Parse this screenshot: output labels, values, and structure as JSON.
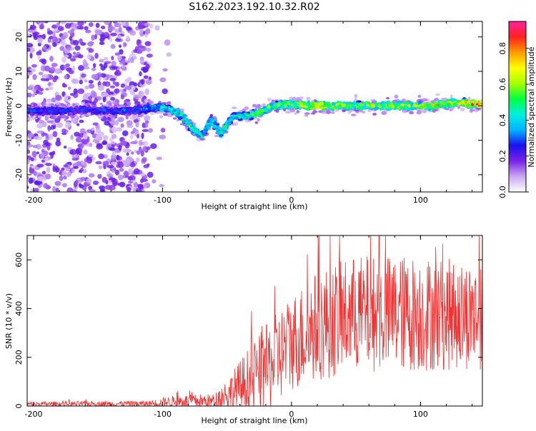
{
  "title": "S162.2023.192.10.32.R02",
  "chart_data": [
    {
      "type": "heatmap",
      "xlabel": "Height of straight line (km)",
      "ylabel": "Frequency (Hz)",
      "xlim": [
        -205,
        148
      ],
      "ylim": [
        -25,
        24.5
      ],
      "xticks": [
        -200,
        -100,
        0,
        100
      ],
      "yticks": [
        -20,
        -10,
        0,
        10,
        20
      ],
      "colorbar": {
        "label": "Normalized spectral amplitude",
        "range": [
          0.0,
          0.95
        ],
        "ticks": [
          "0.0",
          "0.2",
          "0.4",
          "0.6",
          "0.8"
        ],
        "colors": [
          "#ffffff",
          "#c9a8f2",
          "#7a22e8",
          "#1a10f0",
          "#00b4ff",
          "#00f0e0",
          "#00ff40",
          "#a8ff00",
          "#ffff00",
          "#ff9a00",
          "#ff2020",
          "#ff20a0"
        ]
      },
      "ridge": [
        {
          "x": -200,
          "y": -1.5,
          "a": 0.28
        },
        {
          "x": -180,
          "y": -1.5,
          "a": 0.3
        },
        {
          "x": -160,
          "y": -1.2,
          "a": 0.28
        },
        {
          "x": -140,
          "y": -1.5,
          "a": 0.3
        },
        {
          "x": -120,
          "y": -1.2,
          "a": 0.32
        },
        {
          "x": -105,
          "y": -0.5,
          "a": 0.4
        },
        {
          "x": -95,
          "y": -0.8,
          "a": 0.5
        },
        {
          "x": -85,
          "y": -3,
          "a": 0.55
        },
        {
          "x": -78,
          "y": -6,
          "a": 0.55
        },
        {
          "x": -70,
          "y": -9,
          "a": 0.5
        },
        {
          "x": -62,
          "y": -4,
          "a": 0.45
        },
        {
          "x": -55,
          "y": -8,
          "a": 0.5
        },
        {
          "x": -45,
          "y": -3,
          "a": 0.45
        },
        {
          "x": -35,
          "y": -3,
          "a": 0.5
        },
        {
          "x": -25,
          "y": -2,
          "a": 0.55
        },
        {
          "x": -15,
          "y": 0,
          "a": 0.6
        },
        {
          "x": 0,
          "y": 0.5,
          "a": 0.6
        },
        {
          "x": 20,
          "y": 0,
          "a": 0.75
        },
        {
          "x": 40,
          "y": 0,
          "a": 0.62
        },
        {
          "x": 60,
          "y": 0,
          "a": 0.65
        },
        {
          "x": 80,
          "y": 0,
          "a": 0.65
        },
        {
          "x": 100,
          "y": 0,
          "a": 0.6
        },
        {
          "x": 110,
          "y": 0,
          "a": 0.75
        },
        {
          "x": 125,
          "y": 1,
          "a": 0.68
        },
        {
          "x": 140,
          "y": 0.5,
          "a": 0.8
        }
      ]
    },
    {
      "type": "line",
      "xlabel": "Height of straight line (km)",
      "ylabel": "SNR (10 * v/v)",
      "xlim": [
        -205,
        148
      ],
      "ylim": [
        0,
        700
      ],
      "xticks": [
        -200,
        -100,
        0,
        100
      ],
      "yticks": [
        0,
        200,
        400,
        600
      ],
      "line_color": "#ee3333",
      "envelope": [
        {
          "x": -205,
          "base": 8,
          "spread": 10
        },
        {
          "x": -110,
          "base": 10,
          "spread": 12
        },
        {
          "x": -90,
          "base": 20,
          "spread": 25
        },
        {
          "x": -60,
          "base": 20,
          "spread": 30
        },
        {
          "x": -45,
          "base": 60,
          "spread": 90
        },
        {
          "x": -35,
          "base": 90,
          "spread": 140
        },
        {
          "x": -20,
          "base": 150,
          "spread": 180
        },
        {
          "x": 0,
          "base": 260,
          "spread": 200
        },
        {
          "x": 20,
          "base": 330,
          "spread": 230
        },
        {
          "x": 50,
          "base": 380,
          "spread": 240
        },
        {
          "x": 100,
          "base": 380,
          "spread": 240
        },
        {
          "x": 148,
          "base": 370,
          "spread": 220
        }
      ]
    }
  ]
}
